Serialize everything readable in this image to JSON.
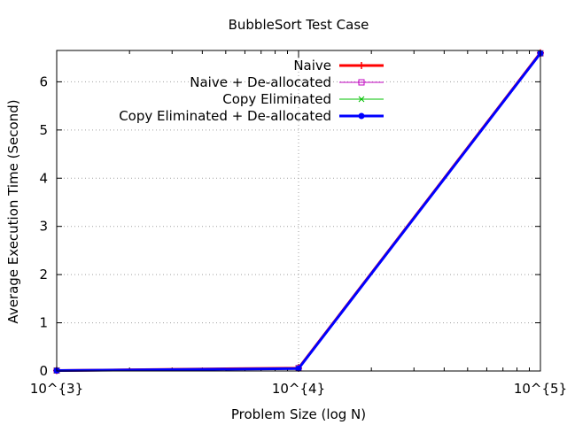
{
  "chart_data": {
    "type": "line",
    "title": "BubbleSort Test Case",
    "xlabel": "Problem Size (log N)",
    "ylabel": "Average Execution Time (Second)",
    "xscale": "log",
    "xlim": [
      1000,
      100000
    ],
    "ylim": [
      0,
      6.65
    ],
    "x_tick_values": [
      1000,
      10000,
      100000
    ],
    "x_tick_labels": [
      "10^{3}",
      "10^{4}",
      "10^{5}"
    ],
    "y_ticks": [
      0,
      1,
      2,
      3,
      4,
      5,
      6
    ],
    "grid": true,
    "legend_position": "top-right",
    "x": [
      1000,
      10000,
      100000
    ],
    "series": [
      {
        "name": "Naive",
        "color": "#ff0000",
        "marker": "plus",
        "values": [
          0.01,
          0.06,
          6.6
        ]
      },
      {
        "name": "Naive + De-allocated",
        "color": "#c000c0",
        "marker": "square-open",
        "values": [
          0.01,
          0.06,
          6.59
        ]
      },
      {
        "name": "Copy Eliminated",
        "color": "#00c000",
        "marker": "cross",
        "values": [
          0.01,
          0.05,
          6.59
        ]
      },
      {
        "name": "Copy Eliminated + De-allocated",
        "color": "#0000ff",
        "marker": "circle-filled",
        "values": [
          0.01,
          0.05,
          6.59
        ]
      }
    ]
  }
}
